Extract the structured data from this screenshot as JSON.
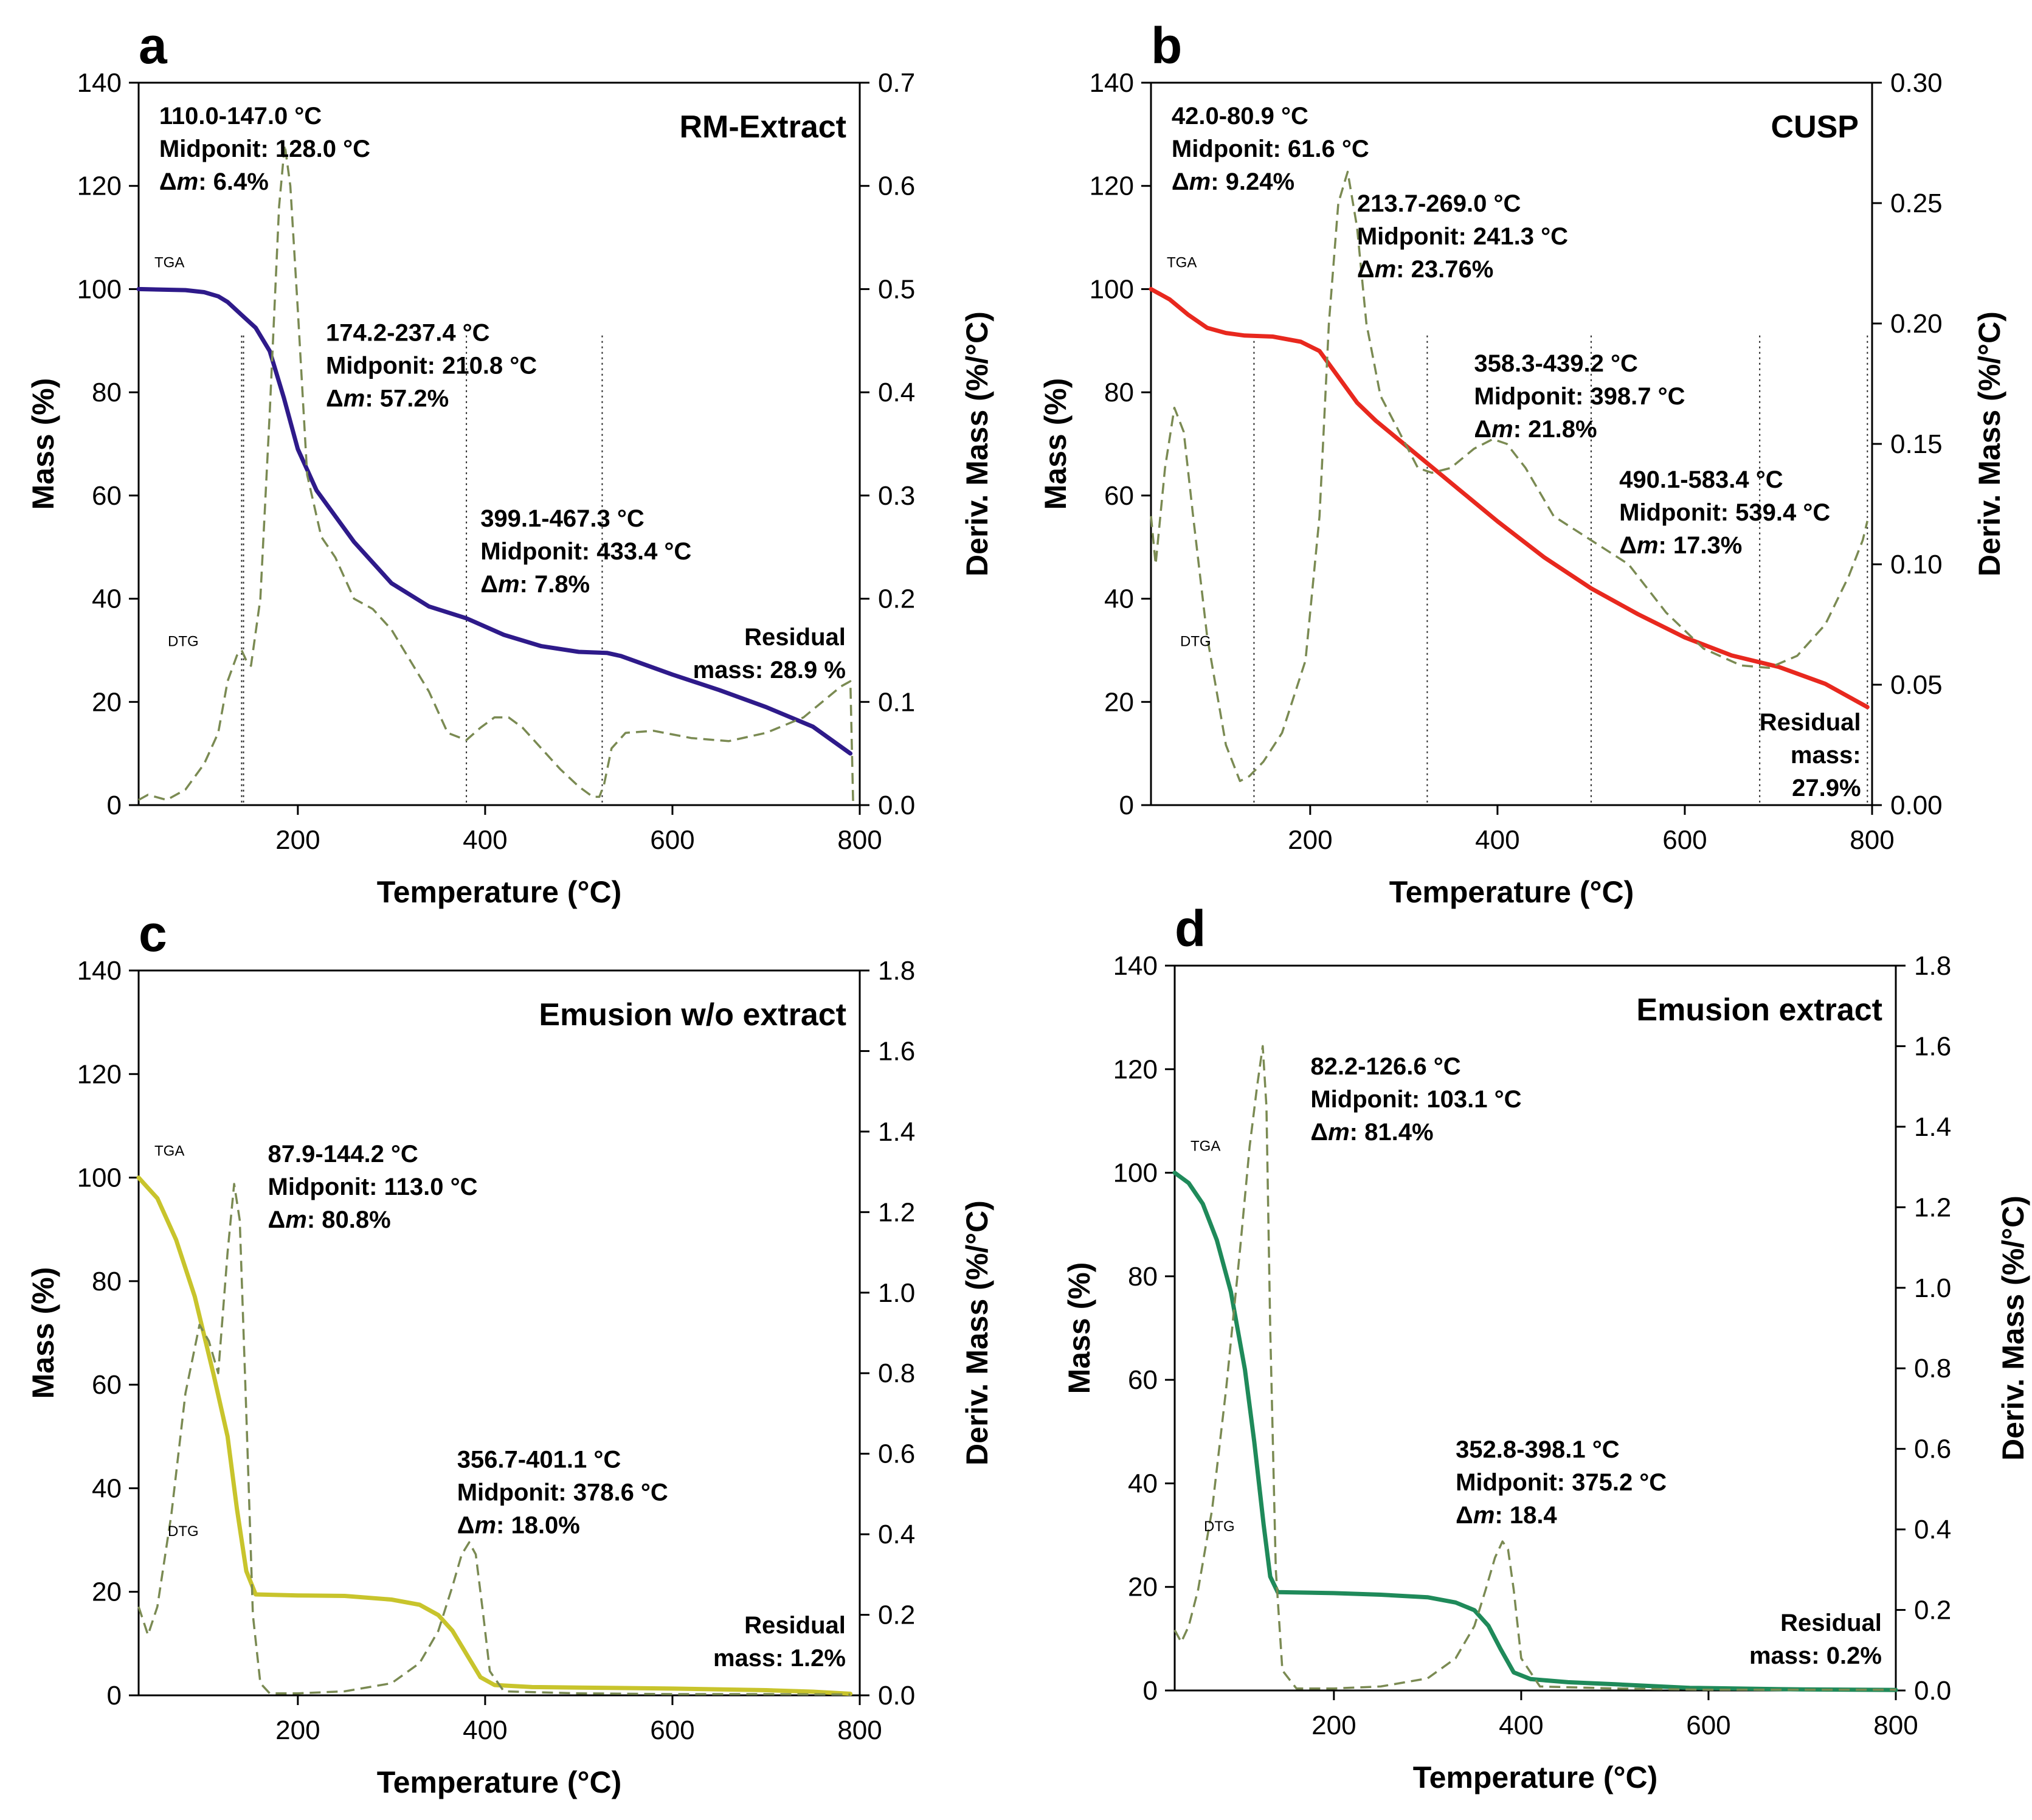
{
  "chart_data": [
    {
      "type": "line",
      "panel": "a",
      "title": "RM-Extract",
      "xlabel": "Temperature (°C)",
      "ylabel": "Mass (%)",
      "y2label": "Deriv. Mass (%/°C)",
      "xlim": [
        30,
        800
      ],
      "ylim": [
        0,
        140
      ],
      "y2lim": [
        0,
        0.7
      ],
      "xticks": [
        "200",
        "400",
        "600",
        "800"
      ],
      "yticks": [
        "0",
        "20",
        "40",
        "60",
        "80",
        "100",
        "120",
        "140"
      ],
      "y2ticks": [
        "0.0",
        "0.1",
        "0.2",
        "0.3",
        "0.4",
        "0.5",
        "0.6",
        "0.7"
      ],
      "tga_color": "#2e1a8a",
      "series": [
        {
          "name": "TGA",
          "axis": "left",
          "style": "solid",
          "x": [
            30,
            80,
            100,
            115,
            125,
            140,
            155,
            170,
            185,
            200,
            220,
            260,
            300,
            340,
            380,
            420,
            460,
            500,
            530,
            545,
            600,
            650,
            700,
            750,
            790
          ],
          "y": [
            100,
            99.8,
            99.4,
            98.6,
            97.5,
            95,
            92.5,
            88,
            79,
            69,
            61,
            51,
            43,
            38.5,
            36.2,
            33,
            30.8,
            29.7,
            29.5,
            28.9,
            25.3,
            22.3,
            19,
            15.2,
            10
          ]
        },
        {
          "name": "DTG",
          "axis": "right",
          "style": "dashed",
          "x": [
            30,
            40,
            60,
            80,
            100,
            115,
            125,
            135,
            140,
            145,
            150,
            160,
            170,
            180,
            186,
            192,
            200,
            210,
            225,
            240,
            260,
            280,
            300,
            320,
            340,
            360,
            380,
            395,
            410,
            425,
            440,
            460,
            480,
            500,
            515,
            522,
            527,
            535,
            550,
            580,
            620,
            660,
            700,
            740,
            780,
            790,
            793
          ],
          "y": [
            0.005,
            0.01,
            0.005,
            0.015,
            0.04,
            0.07,
            0.12,
            0.145,
            0.15,
            0.14,
            0.135,
            0.2,
            0.38,
            0.58,
            0.64,
            0.6,
            0.48,
            0.32,
            0.26,
            0.24,
            0.2,
            0.19,
            0.17,
            0.14,
            0.11,
            0.07,
            0.063,
            0.075,
            0.085,
            0.085,
            0.075,
            0.055,
            0.035,
            0.018,
            0.008,
            0.008,
            0.02,
            0.055,
            0.07,
            0.072,
            0.065,
            0.062,
            0.07,
            0.085,
            0.115,
            0.12,
            0.0
          ]
        }
      ],
      "event_lines_x": [
        140,
        142,
        380,
        525
      ],
      "tags": {
        "tga": "TGA",
        "dtg": "DTG"
      },
      "annotations": [
        {
          "x": 52,
          "y": 132,
          "lines": [
            "110.0-147.0 °C",
            "Midponit: 128.0 °C",
            "Δm: 6.4%"
          ]
        },
        {
          "x": 230,
          "y": 90,
          "lines": [
            "174.2-237.4 °C",
            "Midponit: 210.8 °C",
            "Δm: 57.2%"
          ]
        },
        {
          "x": 395,
          "y": 54,
          "lines": [
            "399.1-467.3 °C",
            "Midponit: 433.4 °C",
            "Δm: 7.8%"
          ]
        },
        {
          "x": 605,
          "y": 31,
          "lines": [
            "Residual",
            "mass: 28.9 %"
          ],
          "align": "end",
          "xr": 785
        }
      ]
    },
    {
      "type": "line",
      "panel": "b",
      "title": "CUSP",
      "xlabel": "Temperature (°C)",
      "ylabel": "Mass (%)",
      "y2label": "Deriv. Mass (%/°C)",
      "xlim": [
        30,
        800
      ],
      "ylim": [
        0,
        140
      ],
      "y2lim": [
        0,
        0.3
      ],
      "xticks": [
        "200",
        "400",
        "600",
        "800"
      ],
      "yticks": [
        "0",
        "20",
        "40",
        "60",
        "80",
        "100",
        "120",
        "140"
      ],
      "y2ticks": [
        "0.00",
        "0.05",
        "0.10",
        "0.15",
        "0.20",
        "0.25",
        "0.30"
      ],
      "tga_color": "#e8281e",
      "series": [
        {
          "name": "TGA",
          "axis": "left",
          "style": "solid",
          "x": [
            30,
            50,
            70,
            90,
            110,
            130,
            160,
            190,
            210,
            230,
            250,
            270,
            300,
            330,
            360,
            400,
            450,
            500,
            550,
            600,
            650,
            700,
            750,
            795
          ],
          "y": [
            100,
            98,
            95,
            92.5,
            91.5,
            91,
            90.8,
            89.8,
            88,
            83,
            78,
            74.5,
            70,
            65.5,
            61,
            55,
            48,
            42,
            37,
            32.5,
            29,
            26.8,
            23.5,
            19
          ]
        },
        {
          "name": "DTG",
          "axis": "right",
          "style": "dashed",
          "x": [
            30,
            35,
            45,
            55,
            65,
            75,
            90,
            110,
            125,
            135,
            150,
            170,
            195,
            210,
            220,
            230,
            240,
            250,
            260,
            275,
            295,
            315,
            330,
            350,
            375,
            395,
            410,
            430,
            460,
            500,
            540,
            580,
            620,
            660,
            690,
            720,
            750,
            775,
            790,
            795
          ],
          "y": [
            0.12,
            0.1,
            0.14,
            0.165,
            0.155,
            0.12,
            0.07,
            0.025,
            0.01,
            0.012,
            0.018,
            0.03,
            0.06,
            0.12,
            0.2,
            0.25,
            0.263,
            0.24,
            0.2,
            0.17,
            0.155,
            0.14,
            0.138,
            0.14,
            0.148,
            0.152,
            0.15,
            0.14,
            0.12,
            0.11,
            0.1,
            0.08,
            0.065,
            0.058,
            0.057,
            0.062,
            0.075,
            0.095,
            0.11,
            0.118
          ]
        }
      ],
      "event_lines_x": [
        140,
        325,
        500,
        680,
        795
      ],
      "tags": {
        "tga": "TGA",
        "dtg": "DTG"
      },
      "annotations": [
        {
          "x": 52,
          "y": 132,
          "lines": [
            "42.0-80.9 °C",
            "Midponit: 61.6 °C",
            "Δm: 9.24%"
          ]
        },
        {
          "x": 250,
          "y": 115,
          "lines": [
            "213.7-269.0 °C",
            "Midponit: 241.3 °C",
            "Δm: 23.76%"
          ]
        },
        {
          "x": 375,
          "y": 84,
          "lines": [
            "358.3-439.2 °C",
            "Midponit: 398.7 °C",
            "Δm: 21.8%"
          ]
        },
        {
          "x": 530,
          "y": 61.5,
          "lines": [
            "490.1-583.4 °C",
            "Midponit: 539.4 °C",
            "Δm: 17.3%"
          ]
        },
        {
          "x": 680,
          "y": 14.5,
          "lines": [
            "Residual",
            "mass:",
            "27.9%"
          ],
          "align": "end",
          "xr": 788
        }
      ]
    },
    {
      "type": "line",
      "panel": "c",
      "title": "Emusion w/o extract",
      "xlabel": "Temperature (°C)",
      "ylabel": "Mass (%)",
      "y2label": "Deriv. Mass (%/°C)",
      "xlim": [
        30,
        800
      ],
      "ylim": [
        0,
        140
      ],
      "y2lim": [
        0,
        1.8
      ],
      "xticks": [
        "200",
        "400",
        "600",
        "800"
      ],
      "yticks": [
        "0",
        "20",
        "40",
        "60",
        "80",
        "100",
        "120",
        "140"
      ],
      "y2ticks": [
        "0.0",
        "0.2",
        "0.4",
        "0.6",
        "0.8",
        "1.0",
        "1.2",
        "1.4",
        "1.6",
        "1.8"
      ],
      "tga_color": "#c8c42c",
      "series": [
        {
          "name": "TGA",
          "axis": "left",
          "style": "solid",
          "x": [
            30,
            50,
            70,
            90,
            110,
            125,
            135,
            145,
            155,
            200,
            250,
            300,
            330,
            350,
            365,
            380,
            395,
            410,
            450,
            500,
            600,
            700,
            750,
            790
          ],
          "y": [
            100,
            96,
            88,
            77,
            62,
            50,
            36,
            24,
            19.5,
            19.3,
            19.2,
            18.5,
            17.5,
            15.5,
            12.5,
            8,
            3.5,
            2,
            1.6,
            1.5,
            1.3,
            1,
            0.7,
            0.3
          ]
        },
        {
          "name": "DTG",
          "axis": "right",
          "style": "dashed",
          "x": [
            30,
            40,
            50,
            65,
            80,
            95,
            105,
            115,
            125,
            132,
            138,
            145,
            152,
            160,
            170,
            200,
            250,
            300,
            330,
            350,
            365,
            375,
            383,
            390,
            398,
            405,
            420,
            500,
            600,
            700,
            790
          ],
          "y": [
            0.22,
            0.15,
            0.22,
            0.45,
            0.75,
            0.92,
            0.88,
            0.8,
            1.1,
            1.27,
            1.18,
            0.7,
            0.2,
            0.03,
            0.005,
            0.005,
            0.01,
            0.03,
            0.08,
            0.16,
            0.27,
            0.35,
            0.38,
            0.35,
            0.2,
            0.06,
            0.01,
            0.005,
            0.003,
            0.003,
            0.002
          ]
        }
      ],
      "event_lines_x": [],
      "tags": {
        "tga": "TGA",
        "dtg": "DTG"
      },
      "annotations": [
        {
          "x": 168,
          "y": 103,
          "lines": [
            "87.9-144.2 °C",
            "Midponit: 113.0 °C",
            "Δm: 80.8%"
          ]
        },
        {
          "x": 370,
          "y": 44,
          "lines": [
            "356.7-401.1 °C",
            "Midponit: 378.6 °C",
            "Δm: 18.0%"
          ]
        },
        {
          "x": 600,
          "y": 12,
          "lines": [
            "Residual",
            "mass: 1.2%"
          ],
          "align": "end",
          "xr": 785
        }
      ]
    },
    {
      "type": "line",
      "panel": "d",
      "title": "Emusion extract",
      "xlabel": "Temperature (°C)",
      "ylabel": "Mass (%)",
      "y2label": "Deriv. Mass (%/°C)",
      "xlim": [
        30,
        800
      ],
      "ylim": [
        0,
        140
      ],
      "y2lim": [
        0,
        1.8
      ],
      "xticks": [
        "200",
        "400",
        "600",
        "800"
      ],
      "yticks": [
        "0",
        "20",
        "40",
        "60",
        "80",
        "100",
        "120",
        "140"
      ],
      "y2ticks": [
        "0.0",
        "0.2",
        "0.4",
        "0.6",
        "0.8",
        "1.0",
        "1.2",
        "1.4",
        "1.6",
        "1.8"
      ],
      "tga_color": "#1f8a5a",
      "series": [
        {
          "name": "TGA",
          "axis": "left",
          "style": "solid",
          "x": [
            30,
            45,
            60,
            75,
            90,
            105,
            115,
            125,
            132,
            140,
            200,
            250,
            300,
            330,
            350,
            365,
            378,
            392,
            410,
            450,
            500,
            580,
            700,
            800
          ],
          "y": [
            100,
            98,
            94,
            87,
            77,
            62,
            48,
            32,
            22,
            19,
            18.8,
            18.5,
            18,
            17,
            15.5,
            12.5,
            8,
            3.5,
            2.2,
            1.6,
            1.2,
            0.5,
            0.2,
            0.1
          ]
        },
        {
          "name": "DTG",
          "axis": "right",
          "style": "dashed",
          "x": [
            30,
            37,
            45,
            55,
            70,
            85,
            100,
            110,
            118,
            124,
            128,
            132,
            138,
            145,
            160,
            200,
            250,
            300,
            330,
            350,
            362,
            372,
            380,
            386,
            392,
            400,
            420,
            500,
            600,
            800
          ],
          "y": [
            0.15,
            0.12,
            0.16,
            0.25,
            0.45,
            0.75,
            1.1,
            1.35,
            1.5,
            1.6,
            1.45,
            0.9,
            0.3,
            0.05,
            0.005,
            0.005,
            0.01,
            0.03,
            0.08,
            0.16,
            0.25,
            0.33,
            0.37,
            0.35,
            0.25,
            0.08,
            0.01,
            0.005,
            0.002,
            0.002
          ]
        }
      ],
      "event_lines_x": [],
      "tags": {
        "tga": "TGA",
        "dtg": "DTG"
      },
      "annotations": [
        {
          "x": 175,
          "y": 119,
          "lines": [
            "82.2-126.6 °C",
            "Midponit: 103.1 °C",
            "Δm: 81.4%"
          ]
        },
        {
          "x": 330,
          "y": 45,
          "lines": [
            "352.8-398.1 °C",
            "Midponit: 375.2 °C",
            "Δm: 18.4"
          ]
        },
        {
          "x": 610,
          "y": 11.5,
          "lines": [
            "Residual",
            "mass: 0.2%"
          ],
          "align": "end",
          "xr": 785
        }
      ]
    }
  ]
}
